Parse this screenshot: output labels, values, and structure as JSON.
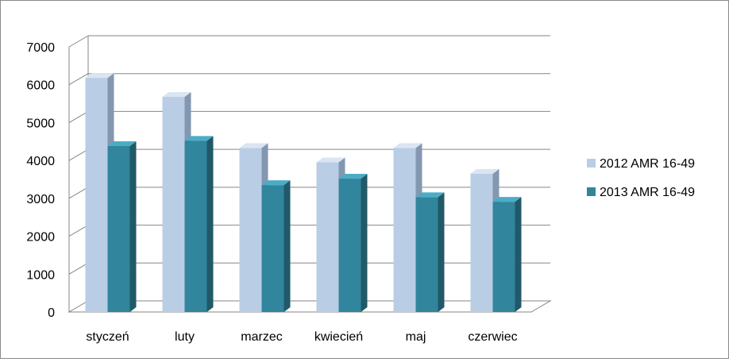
{
  "chart_data": {
    "type": "bar",
    "style": "3d-clustered-column",
    "categories": [
      "styczeń",
      "luty",
      "marzec",
      "kwiecień",
      "maj",
      "czerwiec"
    ],
    "series": [
      {
        "name": "2012 AMR 16-49",
        "values": [
          6180,
          5680,
          4330,
          3950,
          4330,
          3650
        ]
      },
      {
        "name": "2013 AMR 16-49",
        "values": [
          4380,
          4520,
          3350,
          3520,
          3030,
          2910
        ]
      }
    ],
    "ylim": [
      0,
      7000
    ],
    "yticks": [
      0,
      1000,
      2000,
      3000,
      4000,
      5000,
      6000,
      7000
    ],
    "grid": true,
    "legend": "right",
    "colors": {
      "series_front": [
        "#b9cde5",
        "#31859c"
      ],
      "series_side": [
        "#8497b0",
        "#215968"
      ],
      "series_top": [
        "#dbe5f1",
        "#4bacc6"
      ],
      "gridline": "#868686"
    }
  }
}
